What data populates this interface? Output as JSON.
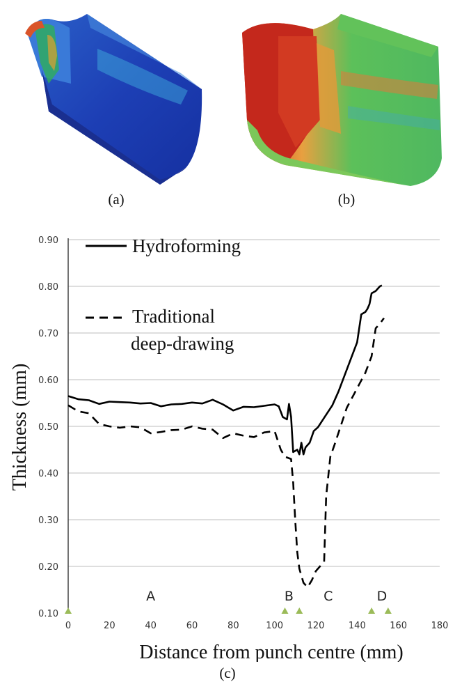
{
  "panels": {
    "a_label": "(a)",
    "b_label": "(b)",
    "c_label": "(c)"
  },
  "colors": {
    "hydro_line": "#000000",
    "traditional_line": "#000000",
    "grid": "#bdbdbd",
    "marker": "#9bbb59"
  },
  "chart_data": {
    "type": "line",
    "xlabel": "Distance from punch centre (mm)",
    "ylabel": "Thickness (mm)",
    "xlim": [
      0,
      180
    ],
    "ylim": [
      0.1,
      0.9
    ],
    "x_ticks": [
      "0",
      "20",
      "40",
      "60",
      "80",
      "100",
      "120",
      "140",
      "160",
      "180"
    ],
    "y_ticks": [
      "0.10",
      "0.20",
      "0.30",
      "0.40",
      "0.50",
      "0.60",
      "0.70",
      "0.80",
      "0.90"
    ],
    "grid": "horizontal",
    "legend": {
      "placement": "top-left",
      "entries": [
        {
          "label": "Hydroforming",
          "style": "solid"
        },
        {
          "label": "Traditional",
          "label2": "deep-drawing",
          "style": "dashed"
        }
      ]
    },
    "region_labels": [
      {
        "text": "A",
        "x": 40
      },
      {
        "text": "B",
        "x": 107
      },
      {
        "text": "C",
        "x": 126
      },
      {
        "text": "D",
        "x": 152
      }
    ],
    "axis_markers": [
      0,
      105,
      112,
      147,
      155
    ],
    "series": [
      {
        "name": "Hydroforming",
        "style": "solid",
        "points": [
          [
            0,
            0.565
          ],
          [
            5,
            0.558
          ],
          [
            10,
            0.556
          ],
          [
            15,
            0.548
          ],
          [
            20,
            0.553
          ],
          [
            25,
            0.552
          ],
          [
            30,
            0.551
          ],
          [
            35,
            0.549
          ],
          [
            40,
            0.55
          ],
          [
            45,
            0.543
          ],
          [
            50,
            0.547
          ],
          [
            55,
            0.548
          ],
          [
            60,
            0.551
          ],
          [
            65,
            0.549
          ],
          [
            70,
            0.557
          ],
          [
            75,
            0.547
          ],
          [
            80,
            0.534
          ],
          [
            85,
            0.542
          ],
          [
            90,
            0.541
          ],
          [
            95,
            0.544
          ],
          [
            100,
            0.547
          ],
          [
            102,
            0.543
          ],
          [
            104,
            0.52
          ],
          [
            106,
            0.515
          ],
          [
            107,
            0.548
          ],
          [
            108,
            0.52
          ],
          [
            109,
            0.445
          ],
          [
            111,
            0.45
          ],
          [
            112,
            0.44
          ],
          [
            113,
            0.465
          ],
          [
            114,
            0.44
          ],
          [
            115,
            0.455
          ],
          [
            117,
            0.465
          ],
          [
            119,
            0.49
          ],
          [
            121,
            0.498
          ],
          [
            125,
            0.525
          ],
          [
            128,
            0.545
          ],
          [
            131,
            0.575
          ],
          [
            134,
            0.61
          ],
          [
            137,
            0.645
          ],
          [
            140,
            0.68
          ],
          [
            142,
            0.74
          ],
          [
            144,
            0.745
          ],
          [
            145,
            0.752
          ],
          [
            146,
            0.762
          ],
          [
            147,
            0.785
          ],
          [
            149,
            0.79
          ],
          [
            151,
            0.8
          ],
          [
            152,
            0.802
          ]
        ]
      },
      {
        "name": "Traditional deep-drawing",
        "style": "dashed",
        "points": [
          [
            0,
            0.545
          ],
          [
            5,
            0.532
          ],
          [
            10,
            0.528
          ],
          [
            15,
            0.505
          ],
          [
            20,
            0.5
          ],
          [
            25,
            0.497
          ],
          [
            30,
            0.5
          ],
          [
            35,
            0.498
          ],
          [
            40,
            0.485
          ],
          [
            45,
            0.488
          ],
          [
            50,
            0.492
          ],
          [
            55,
            0.493
          ],
          [
            60,
            0.5
          ],
          [
            65,
            0.495
          ],
          [
            70,
            0.493
          ],
          [
            75,
            0.475
          ],
          [
            80,
            0.485
          ],
          [
            85,
            0.48
          ],
          [
            90,
            0.477
          ],
          [
            95,
            0.487
          ],
          [
            100,
            0.49
          ],
          [
            103,
            0.45
          ],
          [
            105,
            0.435
          ],
          [
            108,
            0.43
          ],
          [
            109,
            0.38
          ],
          [
            110,
            0.3
          ],
          [
            111,
            0.23
          ],
          [
            112,
            0.195
          ],
          [
            114,
            0.165
          ],
          [
            116,
            0.155
          ],
          [
            118,
            0.17
          ],
          [
            120,
            0.19
          ],
          [
            122,
            0.2
          ],
          [
            124,
            0.21
          ],
          [
            125,
            0.35
          ],
          [
            127,
            0.435
          ],
          [
            129,
            0.46
          ],
          [
            132,
            0.5
          ],
          [
            135,
            0.54
          ],
          [
            138,
            0.565
          ],
          [
            141,
            0.59
          ],
          [
            144,
            0.615
          ],
          [
            147,
            0.65
          ],
          [
            149,
            0.71
          ],
          [
            151,
            0.72
          ],
          [
            153,
            0.732
          ]
        ]
      }
    ]
  }
}
